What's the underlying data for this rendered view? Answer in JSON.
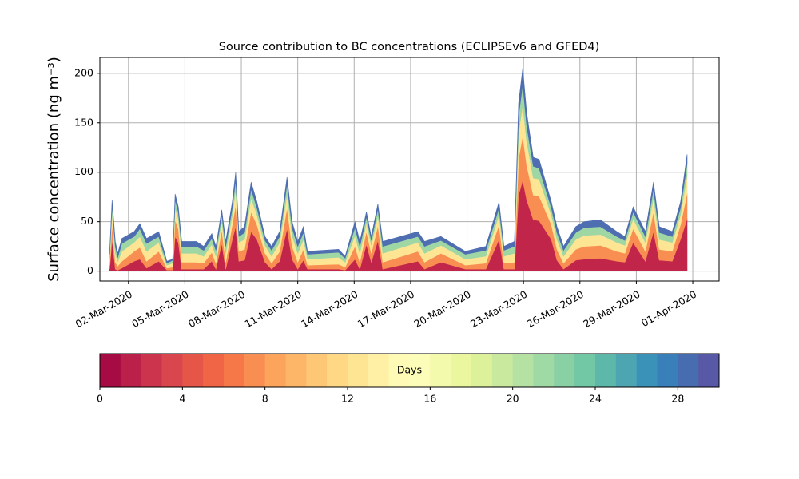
{
  "chart_data": {
    "type": "stacked_area",
    "title": "Source contribution to BC concentrations (ECLIPSEv6 and GFED4)",
    "y_label": "Surface concentration (ng m⁻³)",
    "x": [
      0,
      0.13,
      0.3,
      0.43,
      0.65,
      1.3,
      1.61,
      1.96,
      2.61,
      3.04,
      3.35,
      3.48,
      3.65,
      3.83,
      4.61,
      5.0,
      5.43,
      5.65,
      5.96,
      6.17,
      6.52,
      6.7,
      6.87,
      7.17,
      7.52,
      7.83,
      8.26,
      8.61,
      9.04,
      9.43,
      9.7,
      10.0,
      10.3,
      10.52,
      12.17,
      12.52,
      13.04,
      13.3,
      13.65,
      13.91,
      14.26,
      14.52,
      16.39,
      16.74,
      17.61,
      18.91,
      20.0,
      20.7,
      20.96,
      21.52,
      21.74,
      21.96,
      22.17,
      22.52,
      22.83,
      23.48,
      23.78,
      24.13,
      24.78,
      25.22,
      26.09,
      26.96,
      27.39,
      27.83,
      28.48,
      28.91,
      29.22,
      29.91,
      30.35,
      30.7
    ],
    "series": [
      {
        "color": "#c2254a",
        "values": [
          2,
          32,
          2,
          1,
          3,
          10,
          12,
          3,
          10,
          1,
          1,
          35,
          29,
          2,
          2,
          2,
          10,
          2,
          28,
          2,
          32,
          45,
          10,
          11,
          40,
          32,
          9,
          2,
          10,
          43,
          12,
          2,
          11,
          2,
          2,
          1,
          12,
          2,
          27,
          9,
          31,
          2,
          10,
          2,
          9,
          2,
          2,
          32,
          2,
          2,
          77,
          92,
          72,
          52,
          51,
          32,
          11,
          2,
          11,
          12,
          13,
          10,
          9,
          29,
          10,
          40,
          11,
          10,
          32,
          53
        ]
      },
      {
        "color": "#f98e52",
        "values": [
          4,
          16,
          7,
          4,
          7,
          10,
          12,
          7,
          10,
          2,
          3,
          17,
          14,
          7,
          7,
          6,
          9,
          6,
          14,
          7,
          15,
          22,
          10,
          11,
          20,
          15,
          9,
          6,
          10,
          21,
          13,
          7,
          11,
          4,
          5,
          3,
          13,
          7,
          13,
          9,
          15,
          7,
          10,
          7,
          9,
          4,
          6,
          15,
          6,
          7,
          37,
          45,
          35,
          25,
          25,
          15,
          11,
          6,
          11,
          13,
          13,
          10,
          9,
          14,
          10,
          20,
          11,
          10,
          15,
          26
        ]
      },
      {
        "color": "#fee593",
        "values": [
          6,
          11,
          9,
          5,
          10,
          9,
          11,
          10,
          9,
          3,
          4,
          12,
          10,
          9,
          9,
          7,
          8,
          7,
          9,
          9,
          10,
          15,
          9,
          10,
          14,
          10,
          8,
          7,
          9,
          14,
          11,
          9,
          10,
          6,
          7,
          5,
          11,
          9,
          9,
          8,
          10,
          9,
          9,
          9,
          8,
          6,
          7,
          10,
          7,
          9,
          26,
          31,
          24,
          17,
          17,
          10,
          10,
          7,
          10,
          11,
          11,
          9,
          8,
          10,
          9,
          14,
          10,
          9,
          10,
          18
        ]
      },
      {
        "color": "#9fd7a4",
        "values": [
          5,
          7,
          7,
          4,
          8,
          6,
          8,
          8,
          6,
          2,
          3,
          8,
          7,
          7,
          7,
          6,
          6,
          6,
          6,
          7,
          7,
          10,
          6,
          7,
          9,
          7,
          5,
          6,
          6,
          10,
          8,
          7,
          7,
          5,
          5,
          4,
          8,
          7,
          6,
          5,
          7,
          7,
          6,
          7,
          5,
          5,
          6,
          7,
          6,
          7,
          17,
          21,
          16,
          12,
          11,
          7,
          7,
          6,
          7,
          8,
          8,
          6,
          5,
          7,
          6,
          9,
          7,
          6,
          7,
          12
        ]
      },
      {
        "color": "#4e6eb1",
        "values": [
          3,
          6,
          5,
          4,
          5,
          5,
          5,
          5,
          5,
          2,
          1,
          6,
          5,
          5,
          5,
          4,
          5,
          4,
          5,
          5,
          6,
          8,
          5,
          6,
          7,
          6,
          4,
          4,
          5,
          7,
          6,
          5,
          6,
          3,
          3,
          2,
          6,
          5,
          5,
          4,
          5,
          5,
          5,
          5,
          4,
          3,
          4,
          6,
          4,
          5,
          13,
          16,
          13,
          9,
          9,
          6,
          6,
          4,
          6,
          6,
          7,
          5,
          4,
          5,
          5,
          7,
          6,
          5,
          6,
          9
        ]
      }
    ],
    "xlim": [
      -0.52,
      32.4
    ],
    "xticks": [
      {
        "value": 1,
        "label": "02-Mar-2020"
      },
      {
        "value": 4,
        "label": "05-Mar-2020"
      },
      {
        "value": 7,
        "label": "08-Mar-2020"
      },
      {
        "value": 10,
        "label": "11-Mar-2020"
      },
      {
        "value": 13,
        "label": "14-Mar-2020"
      },
      {
        "value": 16,
        "label": "17-Mar-2020"
      },
      {
        "value": 19,
        "label": "20-Mar-2020"
      },
      {
        "value": 22,
        "label": "23-Mar-2020"
      },
      {
        "value": 25,
        "label": "26-Mar-2020"
      },
      {
        "value": 28,
        "label": "29-Mar-2020"
      },
      {
        "value": 31,
        "label": "01-Apr-2020"
      }
    ],
    "ylim": [
      -10,
      216
    ],
    "yticks": [
      0,
      50,
      100,
      150,
      200
    ],
    "grid": true,
    "colorbar": {
      "label": "Days",
      "lim": [
        0,
        30
      ],
      "ticks": [
        0,
        4,
        8,
        12,
        16,
        20,
        24,
        28
      ],
      "levels": 30,
      "colors": [
        "#9e0142",
        "#d53e4f",
        "#f46d43",
        "#fdae61",
        "#fee08b",
        "#ffffbf",
        "#e6f598",
        "#abdda4",
        "#66c2a5",
        "#3288bd",
        "#5e4fa2"
      ]
    }
  }
}
